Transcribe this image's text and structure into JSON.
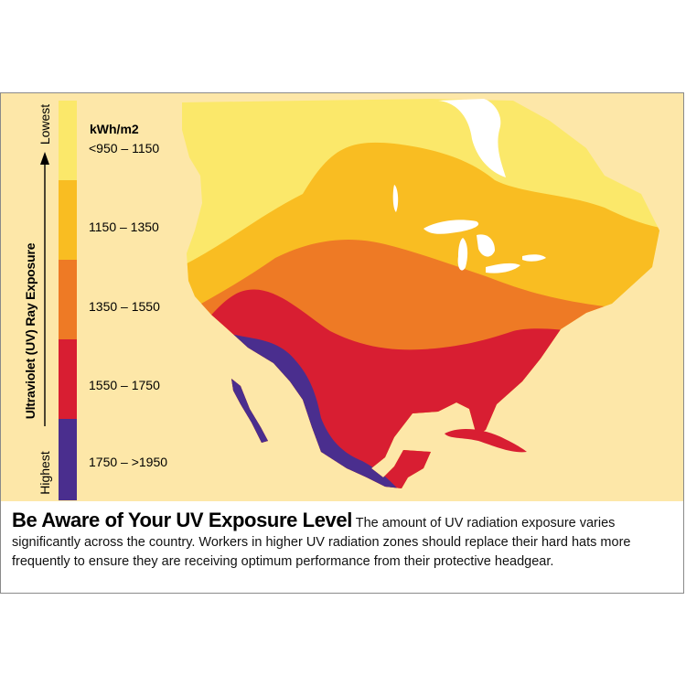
{
  "legend": {
    "axis_title": "Ultraviolet (UV) Ray Exposure",
    "low_label": "Lowest",
    "high_label": "Highest",
    "unit": "kWh/m2",
    "ranges": [
      {
        "label": "<950 – 1150",
        "color": "#fbe86a"
      },
      {
        "label": "1150 – 1350",
        "color": "#f9bd22"
      },
      {
        "label": "1350 – 1550",
        "color": "#ee7a25"
      },
      {
        "label": "1550 – 1750",
        "color": "#d81e32"
      },
      {
        "label": "1750 – >1950",
        "color": "#4a2e8e"
      }
    ]
  },
  "map": {
    "region": "North America",
    "background_color": "#fde7a8",
    "water_color": "#ffffff"
  },
  "caption": {
    "title": "Be Aware of Your UV Exposure Level",
    "body": "The amount of UV radiation exposure varies significantly across the country. Workers in higher UV radiation zones should replace their hard hats more frequently to ensure they are receiving optimum performance from their protective headgear."
  }
}
